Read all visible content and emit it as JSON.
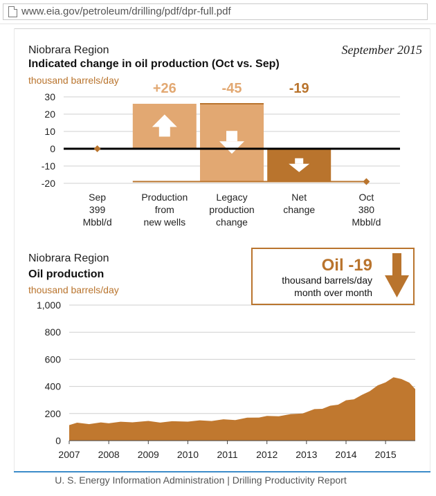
{
  "browser": {
    "url": "www.eia.gov/petroleum/drilling/pdf/dpr-full.pdf"
  },
  "colors": {
    "light_tan": "#e2a872",
    "dark_orange": "#b9742d",
    "area_fill": "#c0782f",
    "zero_line": "#000000"
  },
  "footer": {
    "text": "U. S. Energy Information Administration  |  Drilling Productivity Report"
  },
  "chart_data": [
    {
      "type": "bar",
      "region": "Niobrara Region",
      "title": "Indicated change in oil production (Oct vs. Sep)",
      "date": "September 2015",
      "ylabel": "thousand barrels/day",
      "ylim": [
        -20,
        30
      ],
      "yticks": [
        "30",
        "20",
        "10",
        "0",
        "-10",
        "-20"
      ],
      "grid": true,
      "categories": [
        [
          "Sep",
          "399",
          "Mbbl/d"
        ],
        [
          "Production",
          "from",
          "new wells"
        ],
        [
          "Legacy",
          "production",
          "change"
        ],
        [
          "Net",
          "change"
        ],
        [
          "Oct",
          "380",
          "Mbbl/d"
        ]
      ],
      "delta_labels": [
        "+26",
        "-45",
        "-19"
      ],
      "bars": [
        {
          "name": "Production from new wells",
          "from": 0,
          "to": 26,
          "direction": "up"
        },
        {
          "name": "Legacy production change",
          "from": 26,
          "to": -19,
          "direction": "down"
        },
        {
          "name": "Net change",
          "from": 0,
          "to": -19,
          "direction": "down"
        }
      ],
      "start_value": 0,
      "end_value": -19
    },
    {
      "type": "area",
      "region": "Niobrara Region",
      "title": "Oil production",
      "ylabel": "thousand barrels/day",
      "ylim": [
        0,
        1000
      ],
      "yticks": [
        "1,000",
        "800",
        "600",
        "400",
        "200",
        "0"
      ],
      "xticks": [
        "2007",
        "2008",
        "2009",
        "2010",
        "2011",
        "2012",
        "2013",
        "2014",
        "2015"
      ],
      "grid": true,
      "callout": {
        "value": "Oil -19",
        "line1": "thousand barrels/day",
        "line2": "month over month"
      },
      "x": [
        2007.0,
        2007.2,
        2007.5,
        2007.8,
        2008.0,
        2008.3,
        2008.6,
        2009.0,
        2009.3,
        2009.6,
        2010.0,
        2010.3,
        2010.6,
        2010.9,
        2011.2,
        2011.5,
        2011.8,
        2012.0,
        2012.3,
        2012.6,
        2012.9,
        2013.2,
        2013.4,
        2013.6,
        2013.8,
        2014.0,
        2014.2,
        2014.4,
        2014.6,
        2014.8,
        2015.0,
        2015.2,
        2015.4,
        2015.6,
        2015.75
      ],
      "values": [
        115,
        125,
        122,
        127,
        128,
        132,
        135,
        138,
        133,
        136,
        140,
        142,
        145,
        150,
        152,
        162,
        170,
        175,
        180,
        188,
        200,
        225,
        235,
        250,
        265,
        290,
        305,
        330,
        365,
        400,
        430,
        460,
        455,
        420,
        380
      ]
    }
  ]
}
